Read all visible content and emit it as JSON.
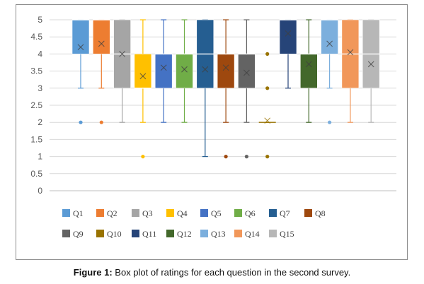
{
  "caption": {
    "label": "Figure 1:",
    "text": " Box plot of ratings for each question in the second survey."
  },
  "chart_data": {
    "type": "box",
    "ylim": [
      0,
      5
    ],
    "yticks": [
      "0",
      "0.5",
      "1",
      "1.5",
      "2",
      "2.5",
      "3",
      "3.5",
      "4",
      "4.5",
      "5"
    ],
    "grid": true,
    "legend_position": "bottom",
    "series": [
      {
        "name": "Q1",
        "color": "#5b9bd5",
        "min": 3,
        "q1": 4,
        "median": 5,
        "q3": 5,
        "max": 5,
        "mean": 4.2,
        "outliers": [
          2
        ]
      },
      {
        "name": "Q2",
        "color": "#ed7d31",
        "min": 3,
        "q1": 4,
        "median": 5,
        "q3": 5,
        "max": 5,
        "mean": 4.3,
        "outliers": [
          2
        ]
      },
      {
        "name": "Q3",
        "color": "#a5a5a5",
        "min": 2,
        "q1": 3,
        "median": 4,
        "q3": 5,
        "max": 5,
        "mean": 4.0,
        "outliers": []
      },
      {
        "name": "Q4",
        "color": "#ffc000",
        "min": 2,
        "q1": 3,
        "median": 3,
        "q3": 4,
        "max": 5,
        "mean": 3.35,
        "outliers": [
          1
        ]
      },
      {
        "name": "Q5",
        "color": "#4472c4",
        "min": 2,
        "q1": 3,
        "median": 4,
        "q3": 4,
        "max": 5,
        "mean": 3.6,
        "outliers": []
      },
      {
        "name": "Q6",
        "color": "#70ad47",
        "min": 2,
        "q1": 3,
        "median": 4,
        "q3": 4,
        "max": 5,
        "mean": 3.55,
        "outliers": []
      },
      {
        "name": "Q7",
        "color": "#255e91",
        "min": 1,
        "q1": 3,
        "median": 4,
        "q3": 5,
        "max": 5,
        "mean": 3.55,
        "outliers": []
      },
      {
        "name": "Q8",
        "color": "#9e480e",
        "min": 2,
        "q1": 3,
        "median": 4,
        "q3": 4,
        "max": 5,
        "mean": 3.6,
        "outliers": [
          1
        ]
      },
      {
        "name": "Q9",
        "color": "#636363",
        "min": 2,
        "q1": 3,
        "median": 4,
        "q3": 4,
        "max": 5,
        "mean": 3.45,
        "outliers": [
          1
        ]
      },
      {
        "name": "Q10",
        "color": "#997300",
        "min": 2,
        "q1": 2,
        "median": 2,
        "q3": 2,
        "max": 2,
        "mean": 2.05,
        "outliers": [
          4,
          3,
          1
        ]
      },
      {
        "name": "Q11",
        "color": "#264478",
        "min": 3,
        "q1": 4,
        "median": 5,
        "q3": 5,
        "max": 5,
        "mean": 4.6,
        "outliers": []
      },
      {
        "name": "Q12",
        "color": "#43682b",
        "min": 2,
        "q1": 3,
        "median": 4,
        "q3": 4,
        "max": 5,
        "mean": 3.7,
        "outliers": []
      },
      {
        "name": "Q13",
        "color": "#7cafdd",
        "min": 3,
        "q1": 4,
        "median": 5,
        "q3": 5,
        "max": 5,
        "mean": 4.3,
        "outliers": [
          2
        ]
      },
      {
        "name": "Q14",
        "color": "#f1975a",
        "min": 2,
        "q1": 3,
        "median": 4,
        "q3": 5,
        "max": 5,
        "mean": 4.05,
        "outliers": []
      },
      {
        "name": "Q15",
        "color": "#b7b7b7",
        "min": 2,
        "q1": 3,
        "median": 4,
        "q3": 5,
        "max": 5,
        "mean": 3.7,
        "outliers": []
      }
    ]
  }
}
